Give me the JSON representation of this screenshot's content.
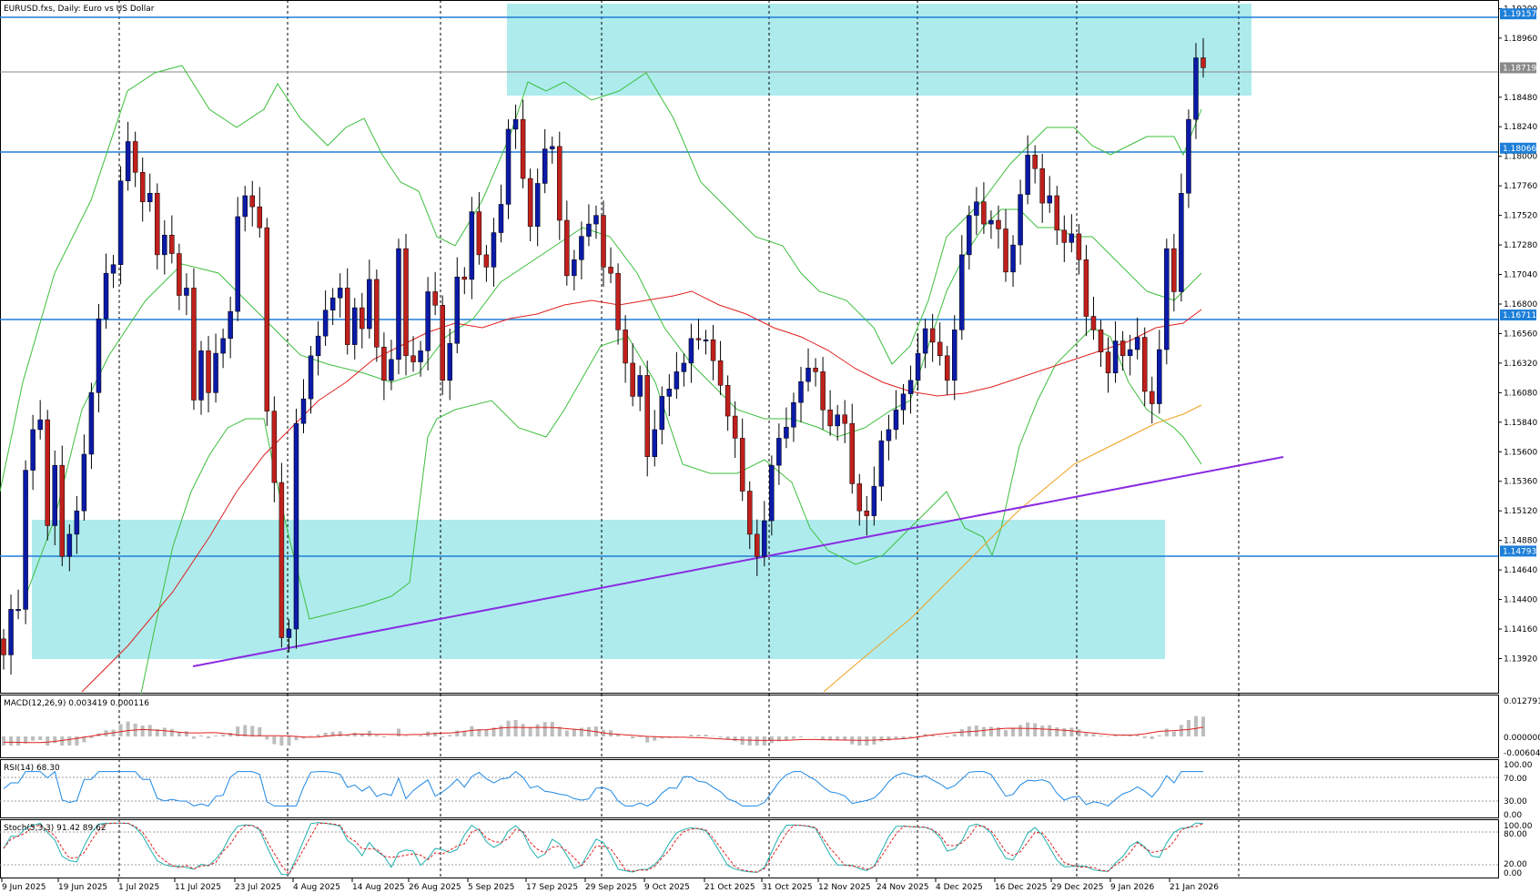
{
  "header": {
    "title": "EURUSD.fxs, Daily:  Euro vs US Dollar"
  },
  "indicators": {
    "macd_label": "MACD(12,26,9) 0.003419 0.000116",
    "rsi_label": "RSI(14) 68.30",
    "stoch_label": "Stoch(5,3,3) 91.42 89.62"
  },
  "colors": {
    "background": "#ffffff",
    "up_candle": "#0b1aa8",
    "down_candle": "#c0201c",
    "zone": "#aeebed",
    "level_line": "#1e7fd8",
    "trendline": "#8a2be2",
    "bollinger": "#3cbf3c",
    "ma_red": "#e02020",
    "ma_orange": "#f0a020",
    "rsi_line": "#1e88e5",
    "stoch_main": "#20b0b0",
    "stoch_signal": "#e02020",
    "macd_hist": "#bdbdbd"
  },
  "chart_data": {
    "type": "candlestick",
    "symbol": "EURUSD.fxs",
    "timeframe": "Daily",
    "price_axis_ticks": [
      "1.19200",
      "1.18960",
      "1.18480",
      "1.18240",
      "1.18000",
      "1.17760",
      "1.17520",
      "1.17280",
      "1.17040",
      "1.16800",
      "1.16560",
      "1.16320",
      "1.16080",
      "1.15840",
      "1.15600",
      "1.15360",
      "1.15120",
      "1.14880",
      "1.14640",
      "1.14400",
      "1.14160",
      "1.13920"
    ],
    "ylim": [
      1.1365,
      1.1924
    ],
    "date_axis_ticks": [
      "9 Jun 2025",
      "19 Jun 2025",
      "1 Jul 2025",
      "11 Jul 2025",
      "23 Jul 2025",
      "4 Aug 2025",
      "14 Aug 2025",
      "26 Aug 2025",
      "5 Sep 2025",
      "17 Sep 2025",
      "29 Sep 2025",
      "9 Oct 2025",
      "21 Oct 2025",
      "31 Oct 2025",
      "12 Nov 2025",
      "24 Nov 2025",
      "4 Dec 2025",
      "16 Dec 2025",
      "29 Dec 2025",
      "9 Jan 2026",
      "21 Jan 2026"
    ],
    "horizontal_levels": [
      {
        "label": "1.19157",
        "value": 1.19157
      },
      {
        "label": "1.18719",
        "value": 1.18719
      },
      {
        "label": "1.18066",
        "value": 1.18066
      },
      {
        "label": "1.16711",
        "value": 1.16711
      },
      {
        "label": "1.14793",
        "value": 1.14793
      }
    ],
    "zones": [
      {
        "from_date": "5 Sep 2025",
        "to_date": "21 Jan 2026",
        "top": 1.1935,
        "bottom": 1.1853
      },
      {
        "from_date": "9 Jun 2025",
        "to_date": "9 Jan 2026",
        "top": 1.1513,
        "bottom": 1.14
      }
    ],
    "trendline": {
      "from": [
        1.1391
      ],
      "to": [
        1.1558
      ]
    },
    "closes": [
      1.1395,
      1.1432,
      1.1432,
      1.1545,
      1.1578,
      1.1586,
      1.15,
      1.1549,
      1.1475,
      1.1493,
      1.1512,
      1.1558,
      1.1608,
      1.1668,
      1.1705,
      1.1712,
      1.178,
      1.1812,
      1.1787,
      1.1763,
      1.177,
      1.172,
      1.1736,
      1.1721,
      1.1687,
      1.1693,
      1.1602,
      1.1642,
      1.1608,
      1.164,
      1.1652,
      1.1674,
      1.1751,
      1.1768,
      1.1759,
      1.1742,
      1.1593,
      1.1535,
      1.1409,
      1.1416,
      1.1583,
      1.1603,
      1.1638,
      1.1654,
      1.1675,
      1.1685,
      1.1693,
      1.1647,
      1.1677,
      1.166,
      1.17,
      1.1645,
      1.1618,
      1.1635,
      1.1725,
      1.1638,
      1.1633,
      1.1642,
      1.169,
      1.1679,
      1.1618,
      1.1648,
      1.1702,
      1.17,
      1.1755,
      1.172,
      1.171,
      1.1738,
      1.1761,
      1.1822,
      1.183,
      1.1782,
      1.1743,
      1.1778,
      1.1806,
      1.1808,
      1.1748,
      1.1703,
      1.1716,
      1.1735,
      1.1745,
      1.1752,
      1.171,
      1.1705,
      1.1659,
      1.1632,
      1.1605,
      1.1622,
      1.1556,
      1.1578,
      1.1605,
      1.1611,
      1.1625,
      1.1632,
      1.1652,
      1.1651,
      1.1651,
      1.1634,
      1.1614,
      1.1589,
      1.1571,
      1.1528,
      1.1493,
      1.1475,
      1.1504,
      1.1549,
      1.1571,
      1.158,
      1.16,
      1.1617,
      1.1628,
      1.1625,
      1.1594,
      1.1581,
      1.159,
      1.1583,
      1.1534,
      1.1512,
      1.1508,
      1.1532,
      1.1569,
      1.1578,
      1.1594,
      1.1607,
      1.1618,
      1.164,
      1.166,
      1.1649,
      1.1638,
      1.1618,
      1.1659,
      1.172,
      1.1752,
      1.1763,
      1.1745,
      1.1748,
      1.1741,
      1.1706,
      1.1728,
      1.1769,
      1.1801,
      1.179,
      1.1762,
      1.1768,
      1.174,
      1.173,
      1.1737,
      1.1716,
      1.167,
      1.1659,
      1.1641,
      1.1624,
      1.165,
      1.1638,
      1.1643,
      1.1653,
      1.1609,
      1.1599,
      1.1643,
      1.1725,
      1.169,
      1.177,
      1.183,
      1.188,
      1.1872
    ]
  }
}
